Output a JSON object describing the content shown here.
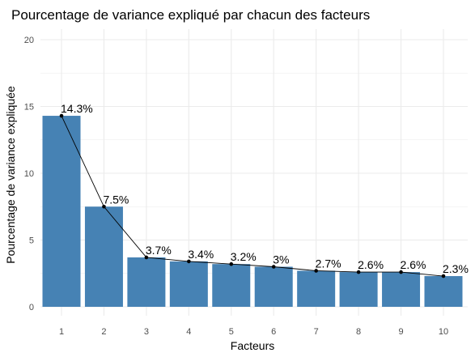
{
  "chart_data": {
    "type": "bar",
    "title": "Pourcentage de variance expliqué par chacun des facteurs",
    "xlabel": "Facteurs",
    "ylabel": "Pourcentage de variance expliquée",
    "categories": [
      "1",
      "2",
      "3",
      "4",
      "5",
      "6",
      "7",
      "8",
      "9",
      "10"
    ],
    "values": [
      14.3,
      7.5,
      3.7,
      3.4,
      3.2,
      3.0,
      2.7,
      2.6,
      2.6,
      2.3
    ],
    "labels": [
      "14.3%",
      "7.5%",
      "3.7%",
      "3.4%",
      "3.2%",
      "3%",
      "2.7%",
      "2.6%",
      "2.6%",
      "2.3%"
    ],
    "yticks": [
      0,
      5,
      10,
      15,
      20
    ],
    "ylim": [
      0,
      20
    ],
    "grid": true,
    "overlay": "line-with-points",
    "legend": "none",
    "colors": {
      "bar": "#4682B4",
      "line": "#000000",
      "point": "#000000",
      "grid": "#EBEBEB",
      "text": "#000000",
      "tick_text": "#4D4D4D"
    }
  }
}
